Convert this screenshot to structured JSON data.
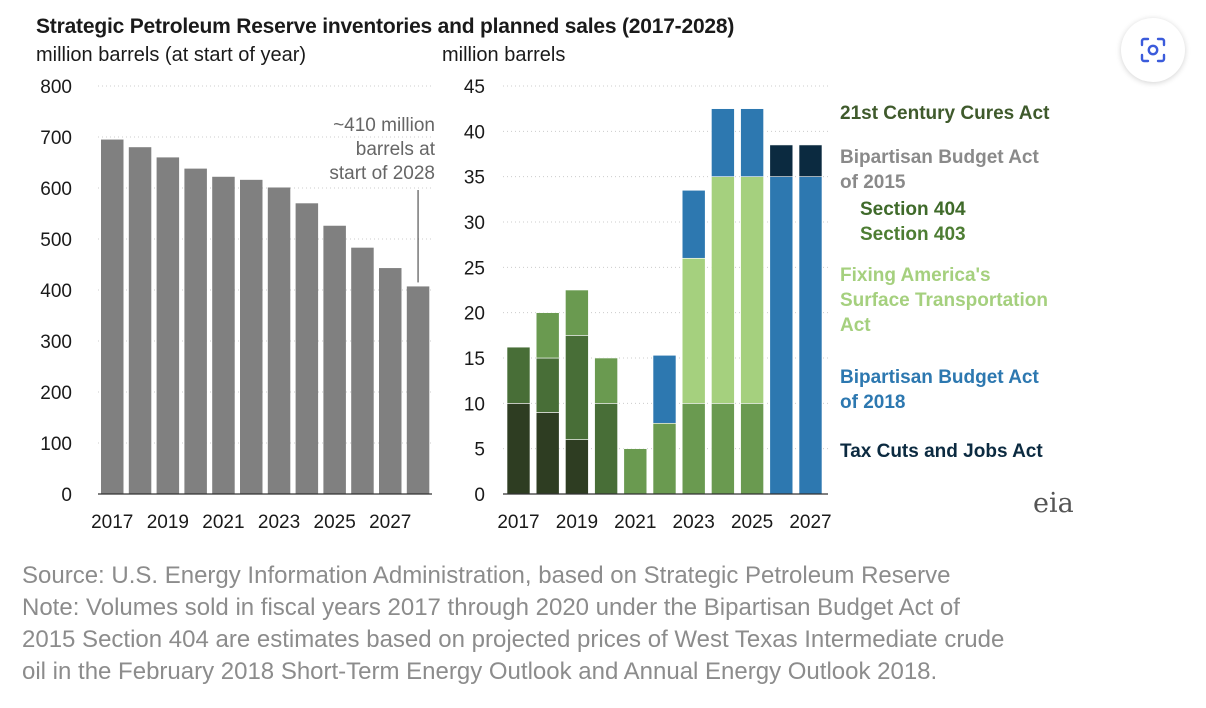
{
  "title": "Strategic Petroleum Reserve inventories and planned sales (2017-2028)",
  "colors": {
    "inventory": "#808080",
    "cures": "#2e3d22",
    "sec404": "#486e37",
    "sec403": "#6a9a50",
    "fast": "#a5d07e",
    "bba2018": "#2d78b0",
    "tcja": "#0b2a40",
    "legend_cures": "#3f5a2c",
    "legend_bba2015": "#8a8a8a",
    "legend_sec404": "#3f6a2a",
    "legend_sec403": "#4d7d33",
    "legend_fast": "#a5d07e",
    "legend_bba2018": "#2d78b0",
    "legend_tcja": "#0b2a40",
    "note_text": "#8c8c8c"
  },
  "chart_data": [
    {
      "type": "bar",
      "title": "",
      "ylabel": "million barrels (at start of year)",
      "xlabel": "",
      "ylim": [
        0,
        800
      ],
      "yticks": [
        0,
        100,
        200,
        300,
        400,
        500,
        600,
        700,
        800
      ],
      "xtick_labels": [
        "2017",
        "2019",
        "2021",
        "2023",
        "2025",
        "2027"
      ],
      "categories": [
        "2017",
        "2018",
        "2019",
        "2020",
        "2021",
        "2022",
        "2023",
        "2024",
        "2025",
        "2026",
        "2027",
        "2028"
      ],
      "values": [
        695,
        680,
        660,
        638,
        622,
        616,
        601,
        570,
        526,
        483,
        443,
        407
      ],
      "annotation": "~410 million\nbarrels at\nstart of 2028",
      "grid": true
    },
    {
      "type": "bar",
      "stacked": true,
      "title": "",
      "ylabel": "million barrels",
      "xlabel": "",
      "ylim": [
        0,
        45
      ],
      "yticks": [
        0,
        5,
        10,
        15,
        20,
        25,
        30,
        35,
        40,
        45
      ],
      "xtick_labels": [
        "2017",
        "2019",
        "2021",
        "2023",
        "2025",
        "2027"
      ],
      "categories": [
        "2017",
        "2018",
        "2019",
        "2020",
        "2021",
        "2022",
        "2023",
        "2024",
        "2025",
        "2026",
        "2027"
      ],
      "series": [
        {
          "name": "21st Century Cures Act",
          "color_key": "cures",
          "values": [
            10,
            9,
            6,
            0,
            0,
            0,
            0,
            0,
            0,
            0,
            0
          ]
        },
        {
          "name": "Section 404",
          "color_key": "sec404",
          "values": [
            6.2,
            6,
            11.5,
            10,
            0,
            0,
            0,
            0,
            0,
            0,
            0
          ]
        },
        {
          "name": "Section 403",
          "color_key": "sec403",
          "values": [
            0,
            5,
            5,
            5,
            5,
            7.8,
            10,
            10,
            10,
            0,
            0
          ]
        },
        {
          "name": "Fixing America's Surface Transportation Act",
          "color_key": "fast",
          "values": [
            0,
            0,
            0,
            0,
            0,
            0,
            16,
            25,
            25,
            0,
            0
          ]
        },
        {
          "name": "Bipartisan Budget Act of 2018",
          "color_key": "bba2018",
          "values": [
            0,
            0,
            0,
            0,
            0,
            7.5,
            7.5,
            7.5,
            7.5,
            35,
            35
          ]
        },
        {
          "name": "Tax Cuts and Jobs Act",
          "color_key": "tcja",
          "values": [
            0,
            0,
            0,
            0,
            0,
            0,
            0,
            0,
            0,
            3.5,
            3.5
          ]
        }
      ],
      "legend_position": "right",
      "grid": true
    }
  ],
  "legend": {
    "cures": "21st Century Cures Act",
    "bba2015": "Bipartisan Budget Act\nof 2015",
    "sec404": "Section 404",
    "sec403": "Section 403",
    "fast": "Fixing America's\nSurface Transportation\nAct",
    "bba2018": "Bipartisan Budget Act\nof 2018",
    "tcja": "Tax Cuts and Jobs Act"
  },
  "logo_text": "eia",
  "notes": {
    "source": "Source: U.S. Energy Information Administration, based on Strategic Petroleum Reserve",
    "note_line1": "Note: Volumes sold in fiscal years 2017 through 2020 under the Bipartisan Budget Act of",
    "note_line2": "2015 Section 404 are estimates based on projected prices of West Texas Intermediate crude",
    "note_line3": "oil in the February 2018 Short-Term Energy Outlook and Annual Energy Outlook 2018."
  },
  "lens_button": {
    "icon": "lens-icon"
  }
}
